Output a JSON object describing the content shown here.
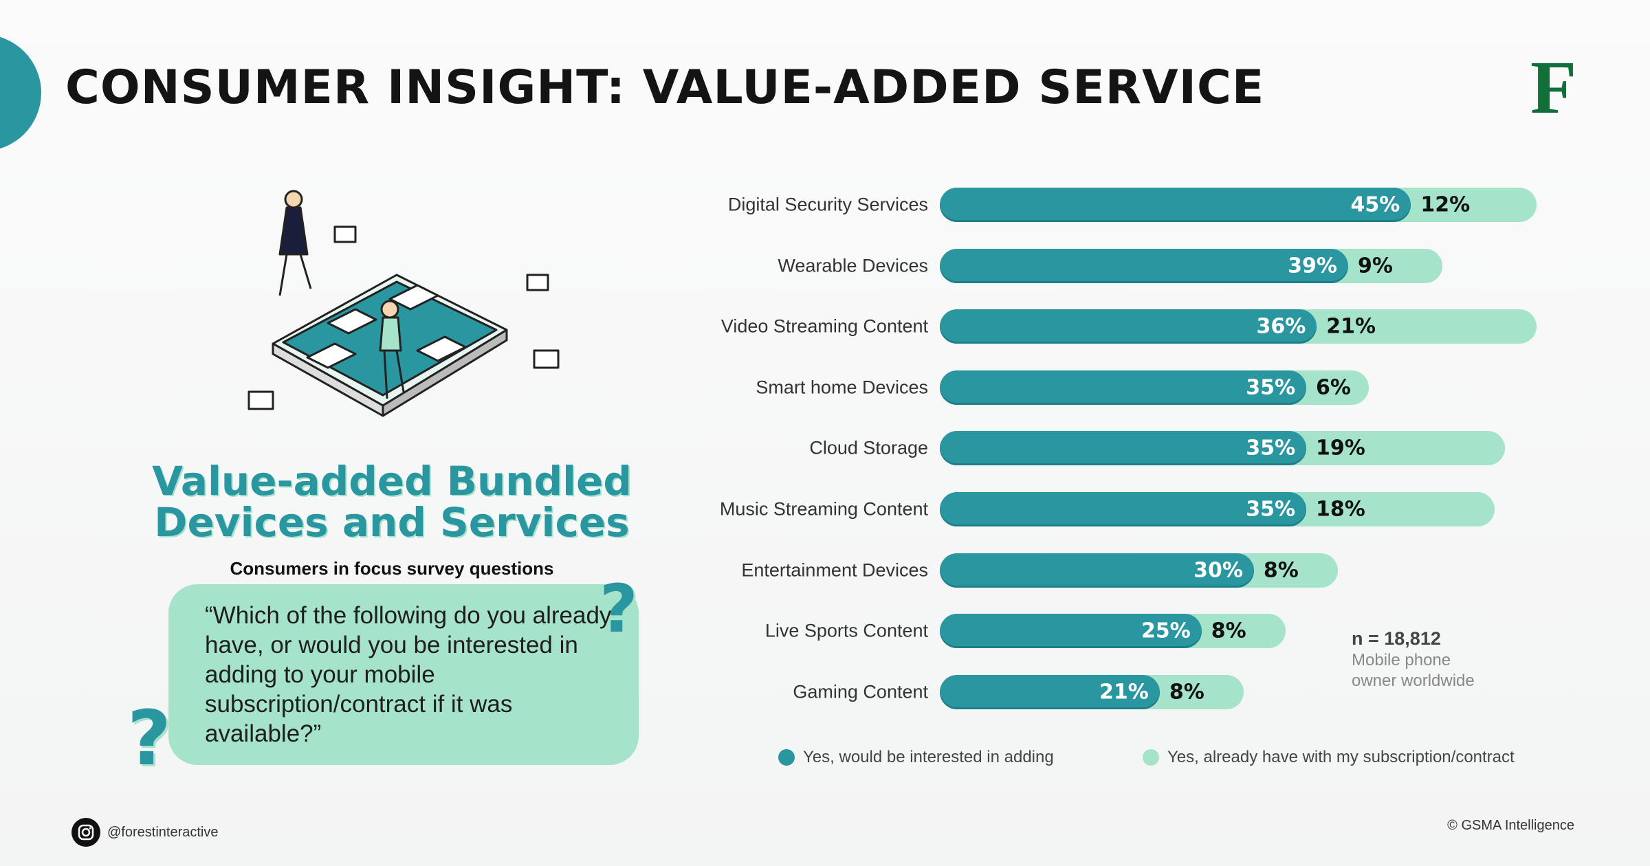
{
  "header": {
    "title": "CONSUMER INSIGHT: VALUE-ADDED SERVICE",
    "logo_text": "F"
  },
  "left": {
    "heading_line1": "Value-added Bundled",
    "heading_line2": "Devices and Services",
    "subtitle": "Consumers in focus survey questions",
    "question": "“Which of the following do you already have, or would you be interested in adding to your mobile subscription/contract if it was available?”"
  },
  "note": {
    "n": "n = 18,812",
    "line1": "Mobile phone",
    "line2": "owner worldwide"
  },
  "footer": {
    "instagram": "@forestinteractive",
    "credit": "© GSMA Intelligence"
  },
  "colors": {
    "interested": "#2a96a0",
    "already_have": "#a6e3cb",
    "logo": "#11703a"
  },
  "chart_data": {
    "type": "bar",
    "orientation": "horizontal",
    "stacked": true,
    "unit": "%",
    "categories": [
      "Digital Security Services",
      "Wearable Devices",
      "Video Streaming Content",
      "Smart home Devices",
      "Cloud Storage",
      "Music Streaming Content",
      "Entertainment Devices",
      "Live Sports Content",
      "Gaming Content"
    ],
    "series": [
      {
        "name": "Yes, would be interested in adding",
        "color": "#2a96a0",
        "values": [
          45,
          39,
          36,
          35,
          35,
          35,
          30,
          25,
          21
        ]
      },
      {
        "name": "Yes, already have with my subscription/contract",
        "color": "#a6e3cb",
        "values": [
          12,
          9,
          21,
          6,
          19,
          18,
          8,
          8,
          8
        ]
      }
    ],
    "legend": "bottom",
    "grid": false
  }
}
